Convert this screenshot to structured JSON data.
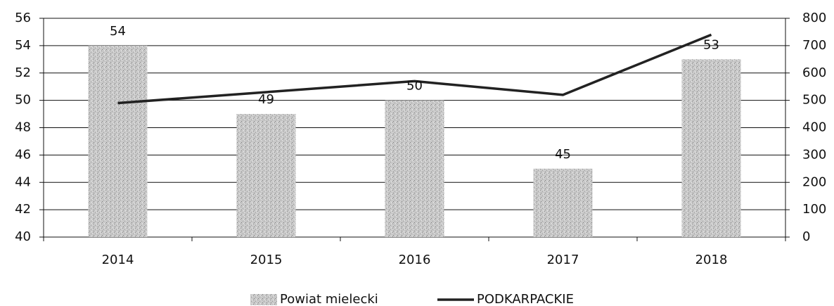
{
  "chart_data": {
    "type": "bar",
    "categories": [
      "2014",
      "2015",
      "2016",
      "2017",
      "2018"
    ],
    "series": [
      {
        "name": "Powiat mielecki",
        "type": "bar",
        "color": "#c9c9c9",
        "values": [
          54,
          49,
          50,
          45,
          53
        ]
      },
      {
        "name": "PODKARPACKIE",
        "type": "line",
        "axis": "y2",
        "color": "#222222",
        "values": [
          490,
          530,
          570,
          520,
          740
        ]
      }
    ],
    "ylim": [
      40,
      56
    ],
    "yticks": [
      40,
      42,
      44,
      46,
      48,
      50,
      52,
      54,
      56
    ],
    "y2lim": [
      0,
      800
    ],
    "y2ticks": [
      0,
      100,
      200,
      300,
      400,
      500,
      600,
      700,
      800
    ],
    "grid": true,
    "legend": "bottom"
  }
}
